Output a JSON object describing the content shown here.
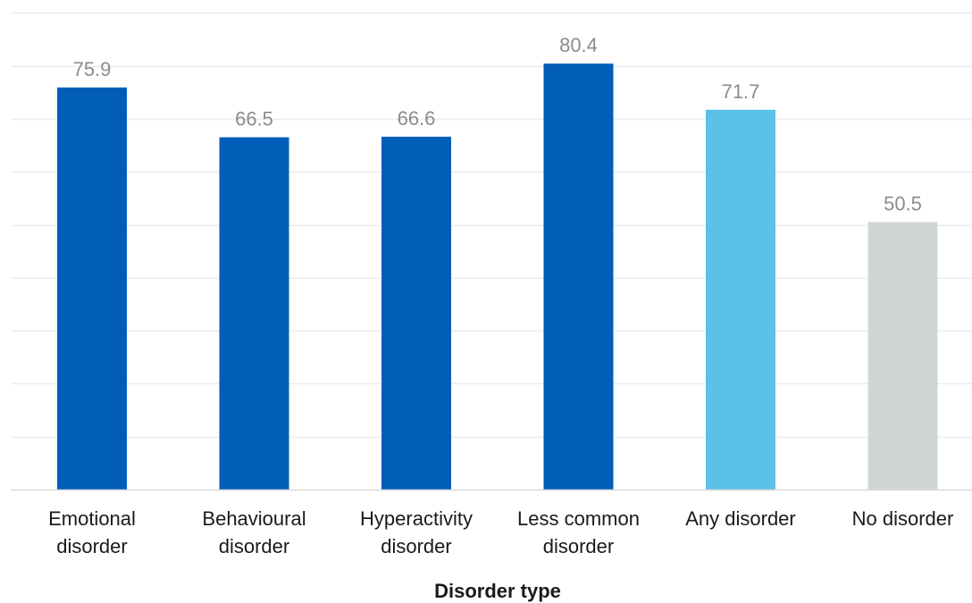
{
  "chart_data": {
    "type": "bar",
    "title": "",
    "xlabel": "Disorder type",
    "ylabel": "",
    "ylim": [
      0,
      90
    ],
    "grid": true,
    "legend": "none",
    "categories": [
      [
        "Emotional",
        "disorder"
      ],
      [
        "Behavioural",
        "disorder"
      ],
      [
        "Hyperactivity",
        "disorder"
      ],
      [
        "Less common",
        "disorder"
      ],
      [
        "Any disorder"
      ],
      [
        "No disorder"
      ]
    ],
    "values": [
      75.9,
      66.5,
      66.6,
      80.4,
      71.7,
      50.5
    ],
    "value_labels": [
      "75.9",
      "66.5",
      "66.6",
      "80.4",
      "71.7",
      "50.5"
    ],
    "colors": [
      "#005eb8",
      "#005eb8",
      "#005eb8",
      "#005eb8",
      "#5bc1e8",
      "#d0d5d5"
    ],
    "gridline_color": "#ececec",
    "baseline_color": "#d9d9d9"
  }
}
